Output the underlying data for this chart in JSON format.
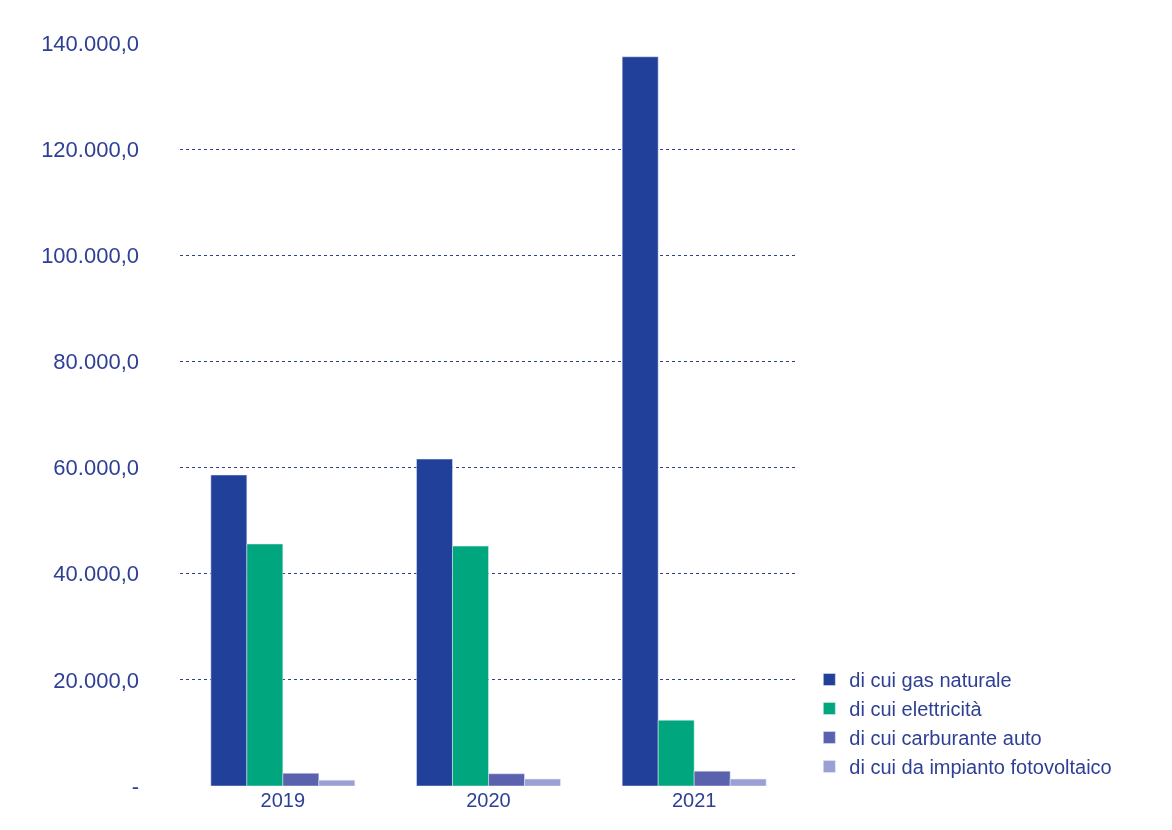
{
  "chart_data": {
    "type": "bar",
    "categories": [
      "2019",
      "2020",
      "2021"
    ],
    "series": [
      {
        "name": "di cui gas naturale",
        "color": "#21409a",
        "values": [
          58600,
          61600,
          137400
        ]
      },
      {
        "name": "di cui elettricità",
        "color": "#00a67e",
        "values": [
          45600,
          45200,
          12400
        ]
      },
      {
        "name": "di cui carburante auto",
        "color": "#5a62ad",
        "values": [
          2400,
          2300,
          2800
        ]
      },
      {
        "name": "di cui da impianto fotovoltaico",
        "color": "#9a9fd4",
        "values": [
          1100,
          1300,
          1300
        ]
      }
    ],
    "ylim": [
      0,
      140000
    ],
    "yticks": [
      {
        "value": 0,
        "label": "-"
      },
      {
        "value": 20000,
        "label": "20.000,0"
      },
      {
        "value": 40000,
        "label": "40.000,0"
      },
      {
        "value": 60000,
        "label": "60.000,0"
      },
      {
        "value": 80000,
        "label": "80.000,0"
      },
      {
        "value": 100000,
        "label": "100.000,0"
      },
      {
        "value": 120000,
        "label": "120.000,0"
      },
      {
        "value": 140000,
        "label": "140.000,0"
      }
    ],
    "grid": "y",
    "legend": "bottom right"
  }
}
